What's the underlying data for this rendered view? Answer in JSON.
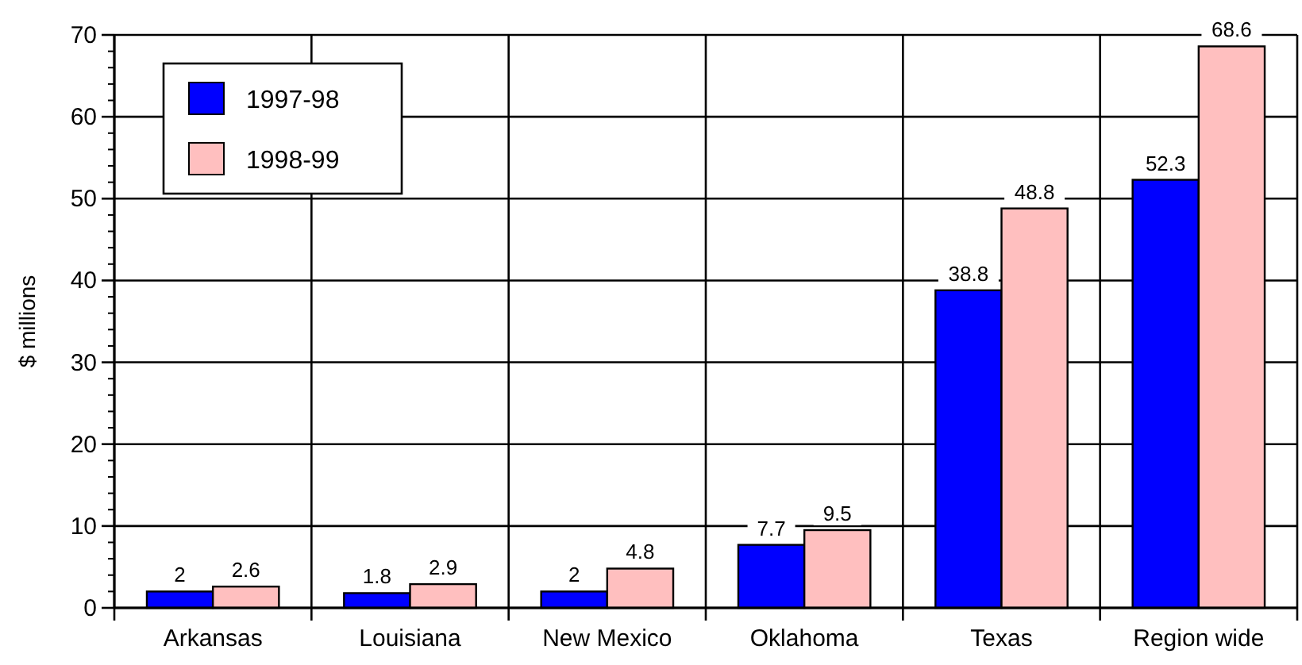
{
  "chart_data": {
    "type": "bar",
    "ylabel": "$ millions",
    "categories": [
      "Arkansas",
      "Louisiana",
      "New Mexico",
      "Oklahoma",
      "Texas",
      "Region wide"
    ],
    "series": [
      {
        "name": "1997-98",
        "color": "#0000ff",
        "values": [
          2,
          1.8,
          2,
          7.7,
          38.8,
          52.3
        ]
      },
      {
        "name": "1998-99",
        "color": "#ffbfbf",
        "values": [
          2.6,
          2.9,
          4.8,
          9.5,
          48.8,
          68.6
        ]
      }
    ],
    "ylim": [
      0,
      70
    ],
    "yticks": [
      0,
      10,
      20,
      30,
      40,
      50,
      60,
      70
    ],
    "grid": true,
    "legend": "top left",
    "data_labels": true
  }
}
